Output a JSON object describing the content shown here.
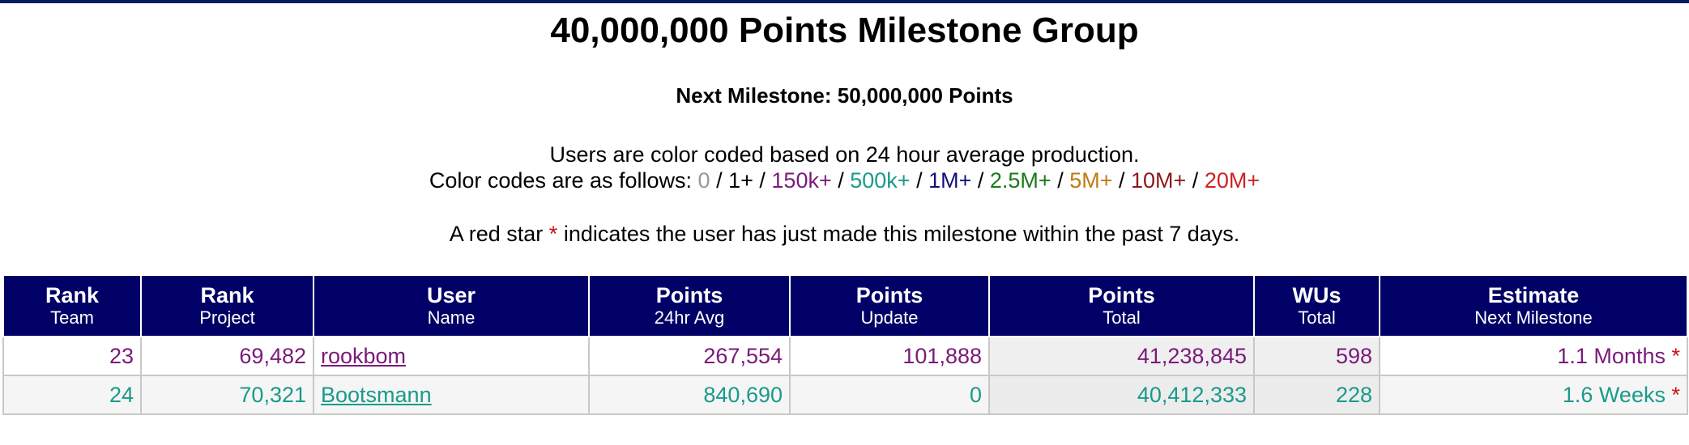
{
  "header": {
    "title": "40,000,000 Points Milestone Group",
    "subtitle": "Next Milestone: 50,000,000 Points",
    "color_note": "Users are color coded based on 24 hour average production.",
    "color_prefix": "Color codes are as follows:",
    "color_codes": [
      {
        "label": "0",
        "color": "#999999"
      },
      {
        "label": "1+",
        "color": "#000000"
      },
      {
        "label": "150k+",
        "color": "#7a1a7a"
      },
      {
        "label": "500k+",
        "color": "#1a9a8a"
      },
      {
        "label": "1M+",
        "color": "#10107a"
      },
      {
        "label": "2.5M+",
        "color": "#1a7a1a"
      },
      {
        "label": "5M+",
        "color": "#c07a10"
      },
      {
        "label": "10M+",
        "color": "#8a1a1a"
      },
      {
        "label": "20M+",
        "color": "#cc2222"
      }
    ],
    "star_note_pre": "A red star",
    "star_symbol": "*",
    "star_note_post": "indicates the user has just made this milestone within the past 7 days.",
    "star_color": "#cc1111"
  },
  "table": {
    "columns": [
      {
        "top": "Rank",
        "bottom": "Team"
      },
      {
        "top": "Rank",
        "bottom": "Project"
      },
      {
        "top": "User",
        "bottom": "Name"
      },
      {
        "top": "Points",
        "bottom": "24hr Avg"
      },
      {
        "top": "Points",
        "bottom": "Update"
      },
      {
        "top": "Points",
        "bottom": "Total"
      },
      {
        "top": "WUs",
        "bottom": "Total"
      },
      {
        "top": "Estimate",
        "bottom": "Next Milestone"
      }
    ],
    "rows": [
      {
        "rank_team": "23",
        "rank_project": "69,482",
        "user": "rookbom",
        "avg_24hr": "267,554",
        "update": "101,888",
        "total": "41,238,845",
        "wus": "598",
        "estimate": "1.1 Months",
        "star": "*",
        "color": "#7a1a7a"
      },
      {
        "rank_team": "24",
        "rank_project": "70,321",
        "user": "Bootsmann",
        "avg_24hr": "840,690",
        "update": "0",
        "total": "40,412,333",
        "wus": "228",
        "estimate": "1.6 Weeks",
        "star": "*",
        "color": "#1a9a8a"
      }
    ]
  }
}
